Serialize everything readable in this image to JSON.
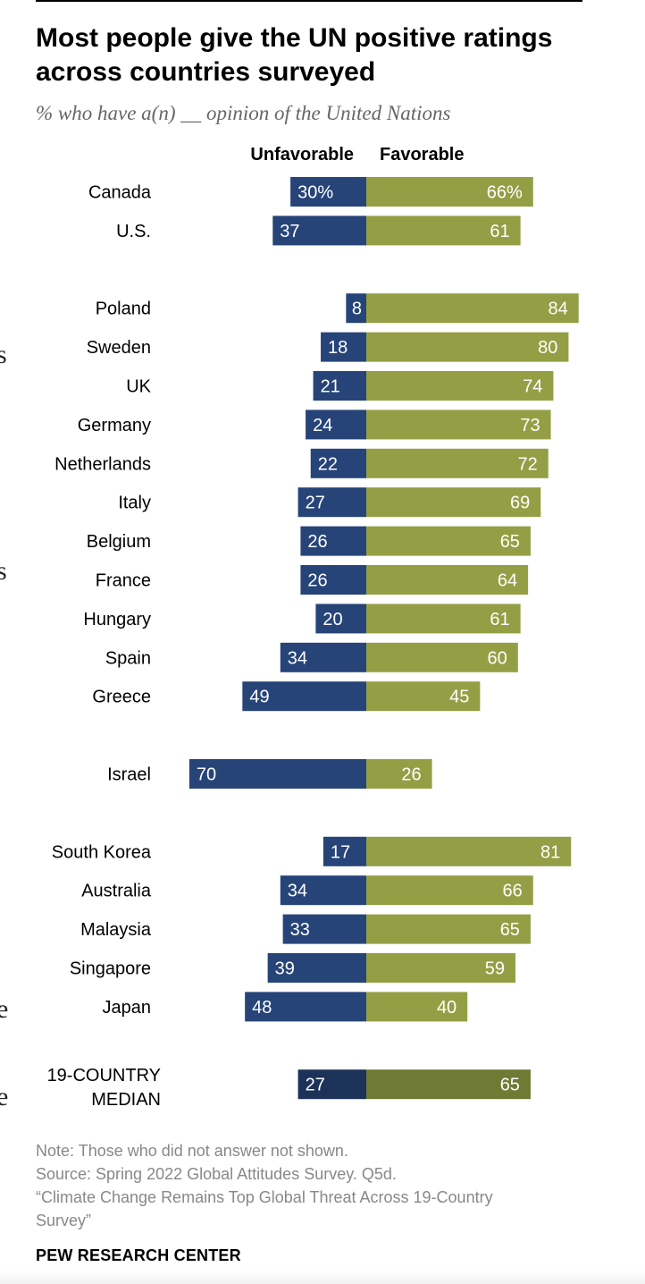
{
  "title": "Most people give the UN positive ratings across countries surveyed",
  "subtitle": "% who have a(n) __ opinion of the United Nations",
  "headers": {
    "unfavorable": "Unfavorable",
    "favorable": "Favorable"
  },
  "colors": {
    "unfavorable": "#264478",
    "favorable": "#949f45",
    "median_unfavorable": "#1c3258",
    "median_favorable": "#6f7a34",
    "label": "#ffffff"
  },
  "edge_glyphs": [
    "s",
    "s",
    "e",
    "e"
  ],
  "chart_data": {
    "type": "bar",
    "orientation": "horizontal-diverging",
    "series_names": [
      "Unfavorable",
      "Favorable"
    ],
    "groups": [
      [
        {
          "country": "Canada",
          "unfavorable": 30,
          "favorable": 66,
          "unfav_label": "30%",
          "fav_label": "66%"
        },
        {
          "country": "U.S.",
          "unfavorable": 37,
          "favorable": 61,
          "unfav_label": "37",
          "fav_label": "61"
        }
      ],
      [
        {
          "country": "Poland",
          "unfavorable": 8,
          "favorable": 84,
          "unfav_label": "8",
          "fav_label": "84"
        },
        {
          "country": "Sweden",
          "unfavorable": 18,
          "favorable": 80,
          "unfav_label": "18",
          "fav_label": "80"
        },
        {
          "country": "UK",
          "unfavorable": 21,
          "favorable": 74,
          "unfav_label": "21",
          "fav_label": "74"
        },
        {
          "country": "Germany",
          "unfavorable": 24,
          "favorable": 73,
          "unfav_label": "24",
          "fav_label": "73"
        },
        {
          "country": "Netherlands",
          "unfavorable": 22,
          "favorable": 72,
          "unfav_label": "22",
          "fav_label": "72"
        },
        {
          "country": "Italy",
          "unfavorable": 27,
          "favorable": 69,
          "unfav_label": "27",
          "fav_label": "69"
        },
        {
          "country": "Belgium",
          "unfavorable": 26,
          "favorable": 65,
          "unfav_label": "26",
          "fav_label": "65"
        },
        {
          "country": "France",
          "unfavorable": 26,
          "favorable": 64,
          "unfav_label": "26",
          "fav_label": "64"
        },
        {
          "country": "Hungary",
          "unfavorable": 20,
          "favorable": 61,
          "unfav_label": "20",
          "fav_label": "61"
        },
        {
          "country": "Spain",
          "unfavorable": 34,
          "favorable": 60,
          "unfav_label": "34",
          "fav_label": "60"
        },
        {
          "country": "Greece",
          "unfavorable": 49,
          "favorable": 45,
          "unfav_label": "49",
          "fav_label": "45"
        }
      ],
      [
        {
          "country": "Israel",
          "unfavorable": 70,
          "favorable": 26,
          "unfav_label": "70",
          "fav_label": "26"
        }
      ],
      [
        {
          "country": "South Korea",
          "unfavorable": 17,
          "favorable": 81,
          "unfav_label": "17",
          "fav_label": "81"
        },
        {
          "country": "Australia",
          "unfavorable": 34,
          "favorable": 66,
          "unfav_label": "34",
          "fav_label": "66"
        },
        {
          "country": "Malaysia",
          "unfavorable": 33,
          "favorable": 65,
          "unfav_label": "33",
          "fav_label": "65"
        },
        {
          "country": "Singapore",
          "unfavorable": 39,
          "favorable": 59,
          "unfav_label": "39",
          "fav_label": "59"
        },
        {
          "country": "Japan",
          "unfavorable": 48,
          "favorable": 40,
          "unfav_label": "48",
          "fav_label": "40"
        }
      ]
    ],
    "median": {
      "label_lines": [
        "19-COUNTRY",
        "MEDIAN"
      ],
      "unfavorable": 27,
      "favorable": 65,
      "unfav_label": "27",
      "fav_label": "65"
    }
  },
  "footer": {
    "note": "Note: Those who did not answer not shown.",
    "source": "Source: Spring 2022 Global Attitudes Survey. Q5d.",
    "report_line1": "“Climate Change Remains Top Global Threat Across 19-Country",
    "report_line2": "Survey”",
    "brand": "PEW RESEARCH CENTER"
  }
}
